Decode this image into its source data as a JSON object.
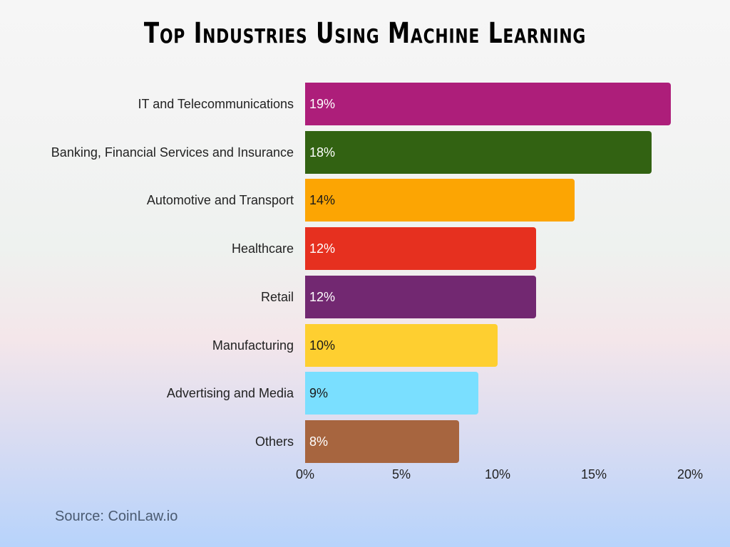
{
  "title": "Top Industries Using Machine Learning",
  "source": "Source: CoinLaw.io",
  "chart_data": {
    "type": "bar",
    "orientation": "horizontal",
    "title": "Top Industries Using Machine Learning",
    "xlabel": "",
    "ylabel": "",
    "xlim": [
      0,
      20
    ],
    "categories": [
      "IT and Telecommunications",
      "Banking, Financial Services and Insurance",
      "Automotive and Transport",
      "Healthcare",
      "Retail",
      "Manufacturing",
      "Advertising and Media",
      "Others"
    ],
    "values": [
      19,
      18,
      14,
      12,
      12,
      10,
      9,
      8
    ],
    "value_labels": [
      "19%",
      "18%",
      "14%",
      "12%",
      "12%",
      "10%",
      "9%",
      "8%"
    ],
    "colors": [
      "#ad1e7a",
      "#326212",
      "#fca503",
      "#e6301f",
      "#722871",
      "#fecf30",
      "#7adfff",
      "#a7653f"
    ],
    "label_colors": [
      "#ffffff",
      "#ffffff",
      "#1a1a1a",
      "#ffffff",
      "#ffffff",
      "#1a1a1a",
      "#1a1a1a",
      "#ffffff"
    ],
    "x_ticks": [
      "0%",
      "5%",
      "10%",
      "15%",
      "20%"
    ],
    "grid": false,
    "legend": "none",
    "source": "Source: CoinLaw.io"
  }
}
